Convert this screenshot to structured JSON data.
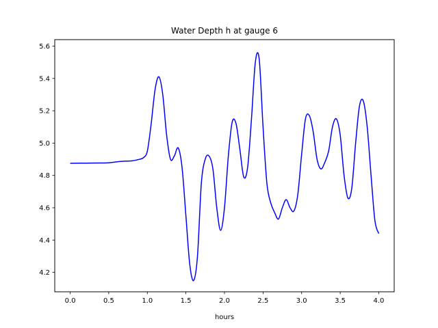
{
  "chart_data": {
    "type": "line",
    "title": "Water Depth h at gauge 6",
    "xlabel": "hours",
    "ylabel": "",
    "xlim": [
      -0.2,
      4.2
    ],
    "ylim": [
      4.08,
      5.64
    ],
    "xticks": [
      0.0,
      0.5,
      1.0,
      1.5,
      2.0,
      2.5,
      3.0,
      3.5,
      4.0
    ],
    "xtick_labels": [
      "0.0",
      "0.5",
      "1.0",
      "1.5",
      "2.0",
      "2.5",
      "3.0",
      "3.5",
      "4.0"
    ],
    "yticks": [
      4.2,
      4.4,
      4.6,
      4.8,
      5.0,
      5.2,
      5.4,
      5.6
    ],
    "ytick_labels": [
      "4.2",
      "4.4",
      "4.6",
      "4.8",
      "5.0",
      "5.2",
      "5.4",
      "5.6"
    ],
    "grid": false,
    "series": [
      {
        "color": "#0000ff",
        "x": [
          0.0,
          0.2,
          0.4,
          0.5,
          0.6,
          0.7,
          0.8,
          0.9,
          0.95,
          1.0,
          1.05,
          1.1,
          1.15,
          1.2,
          1.25,
          1.3,
          1.35,
          1.4,
          1.45,
          1.5,
          1.55,
          1.6,
          1.65,
          1.7,
          1.75,
          1.8,
          1.85,
          1.9,
          1.95,
          2.0,
          2.05,
          2.1,
          2.15,
          2.2,
          2.25,
          2.3,
          2.35,
          2.4,
          2.45,
          2.5,
          2.55,
          2.6,
          2.65,
          2.7,
          2.75,
          2.8,
          2.85,
          2.9,
          2.95,
          3.0,
          3.05,
          3.1,
          3.15,
          3.2,
          3.25,
          3.3,
          3.35,
          3.4,
          3.45,
          3.5,
          3.55,
          3.6,
          3.65,
          3.7,
          3.75,
          3.8,
          3.85,
          3.9,
          3.95,
          4.0
        ],
        "y": [
          4.875,
          4.876,
          4.877,
          4.878,
          4.884,
          4.888,
          4.89,
          4.9,
          4.91,
          4.95,
          5.12,
          5.33,
          5.41,
          5.3,
          5.05,
          4.9,
          4.92,
          4.97,
          4.85,
          4.55,
          4.25,
          4.15,
          4.3,
          4.75,
          4.9,
          4.92,
          4.84,
          4.6,
          4.46,
          4.6,
          4.92,
          5.13,
          5.12,
          4.96,
          4.79,
          4.85,
          5.15,
          5.5,
          5.52,
          5.1,
          4.75,
          4.63,
          4.57,
          4.53,
          4.6,
          4.65,
          4.6,
          4.58,
          4.68,
          4.93,
          5.15,
          5.17,
          5.07,
          4.9,
          4.84,
          4.88,
          4.95,
          5.1,
          5.15,
          5.05,
          4.8,
          4.66,
          4.72,
          5.0,
          5.23,
          5.26,
          5.1,
          4.8,
          4.52,
          4.44
        ]
      }
    ]
  }
}
